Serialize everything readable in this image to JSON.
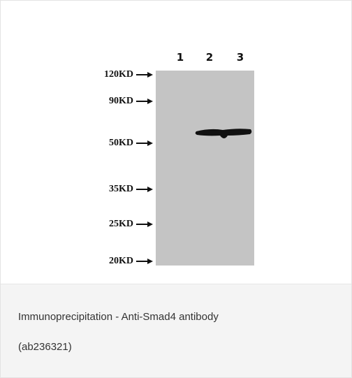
{
  "figure": {
    "lanes": [
      "1",
      "2",
      "3"
    ],
    "markers": [
      "120KD",
      "90KD",
      "50KD",
      "35KD",
      "25KD",
      "20KD"
    ]
  },
  "caption": {
    "lines": [
      "Immunoprecipitation - Anti-Smad4 antibody",
      "(ab236321)"
    ]
  }
}
